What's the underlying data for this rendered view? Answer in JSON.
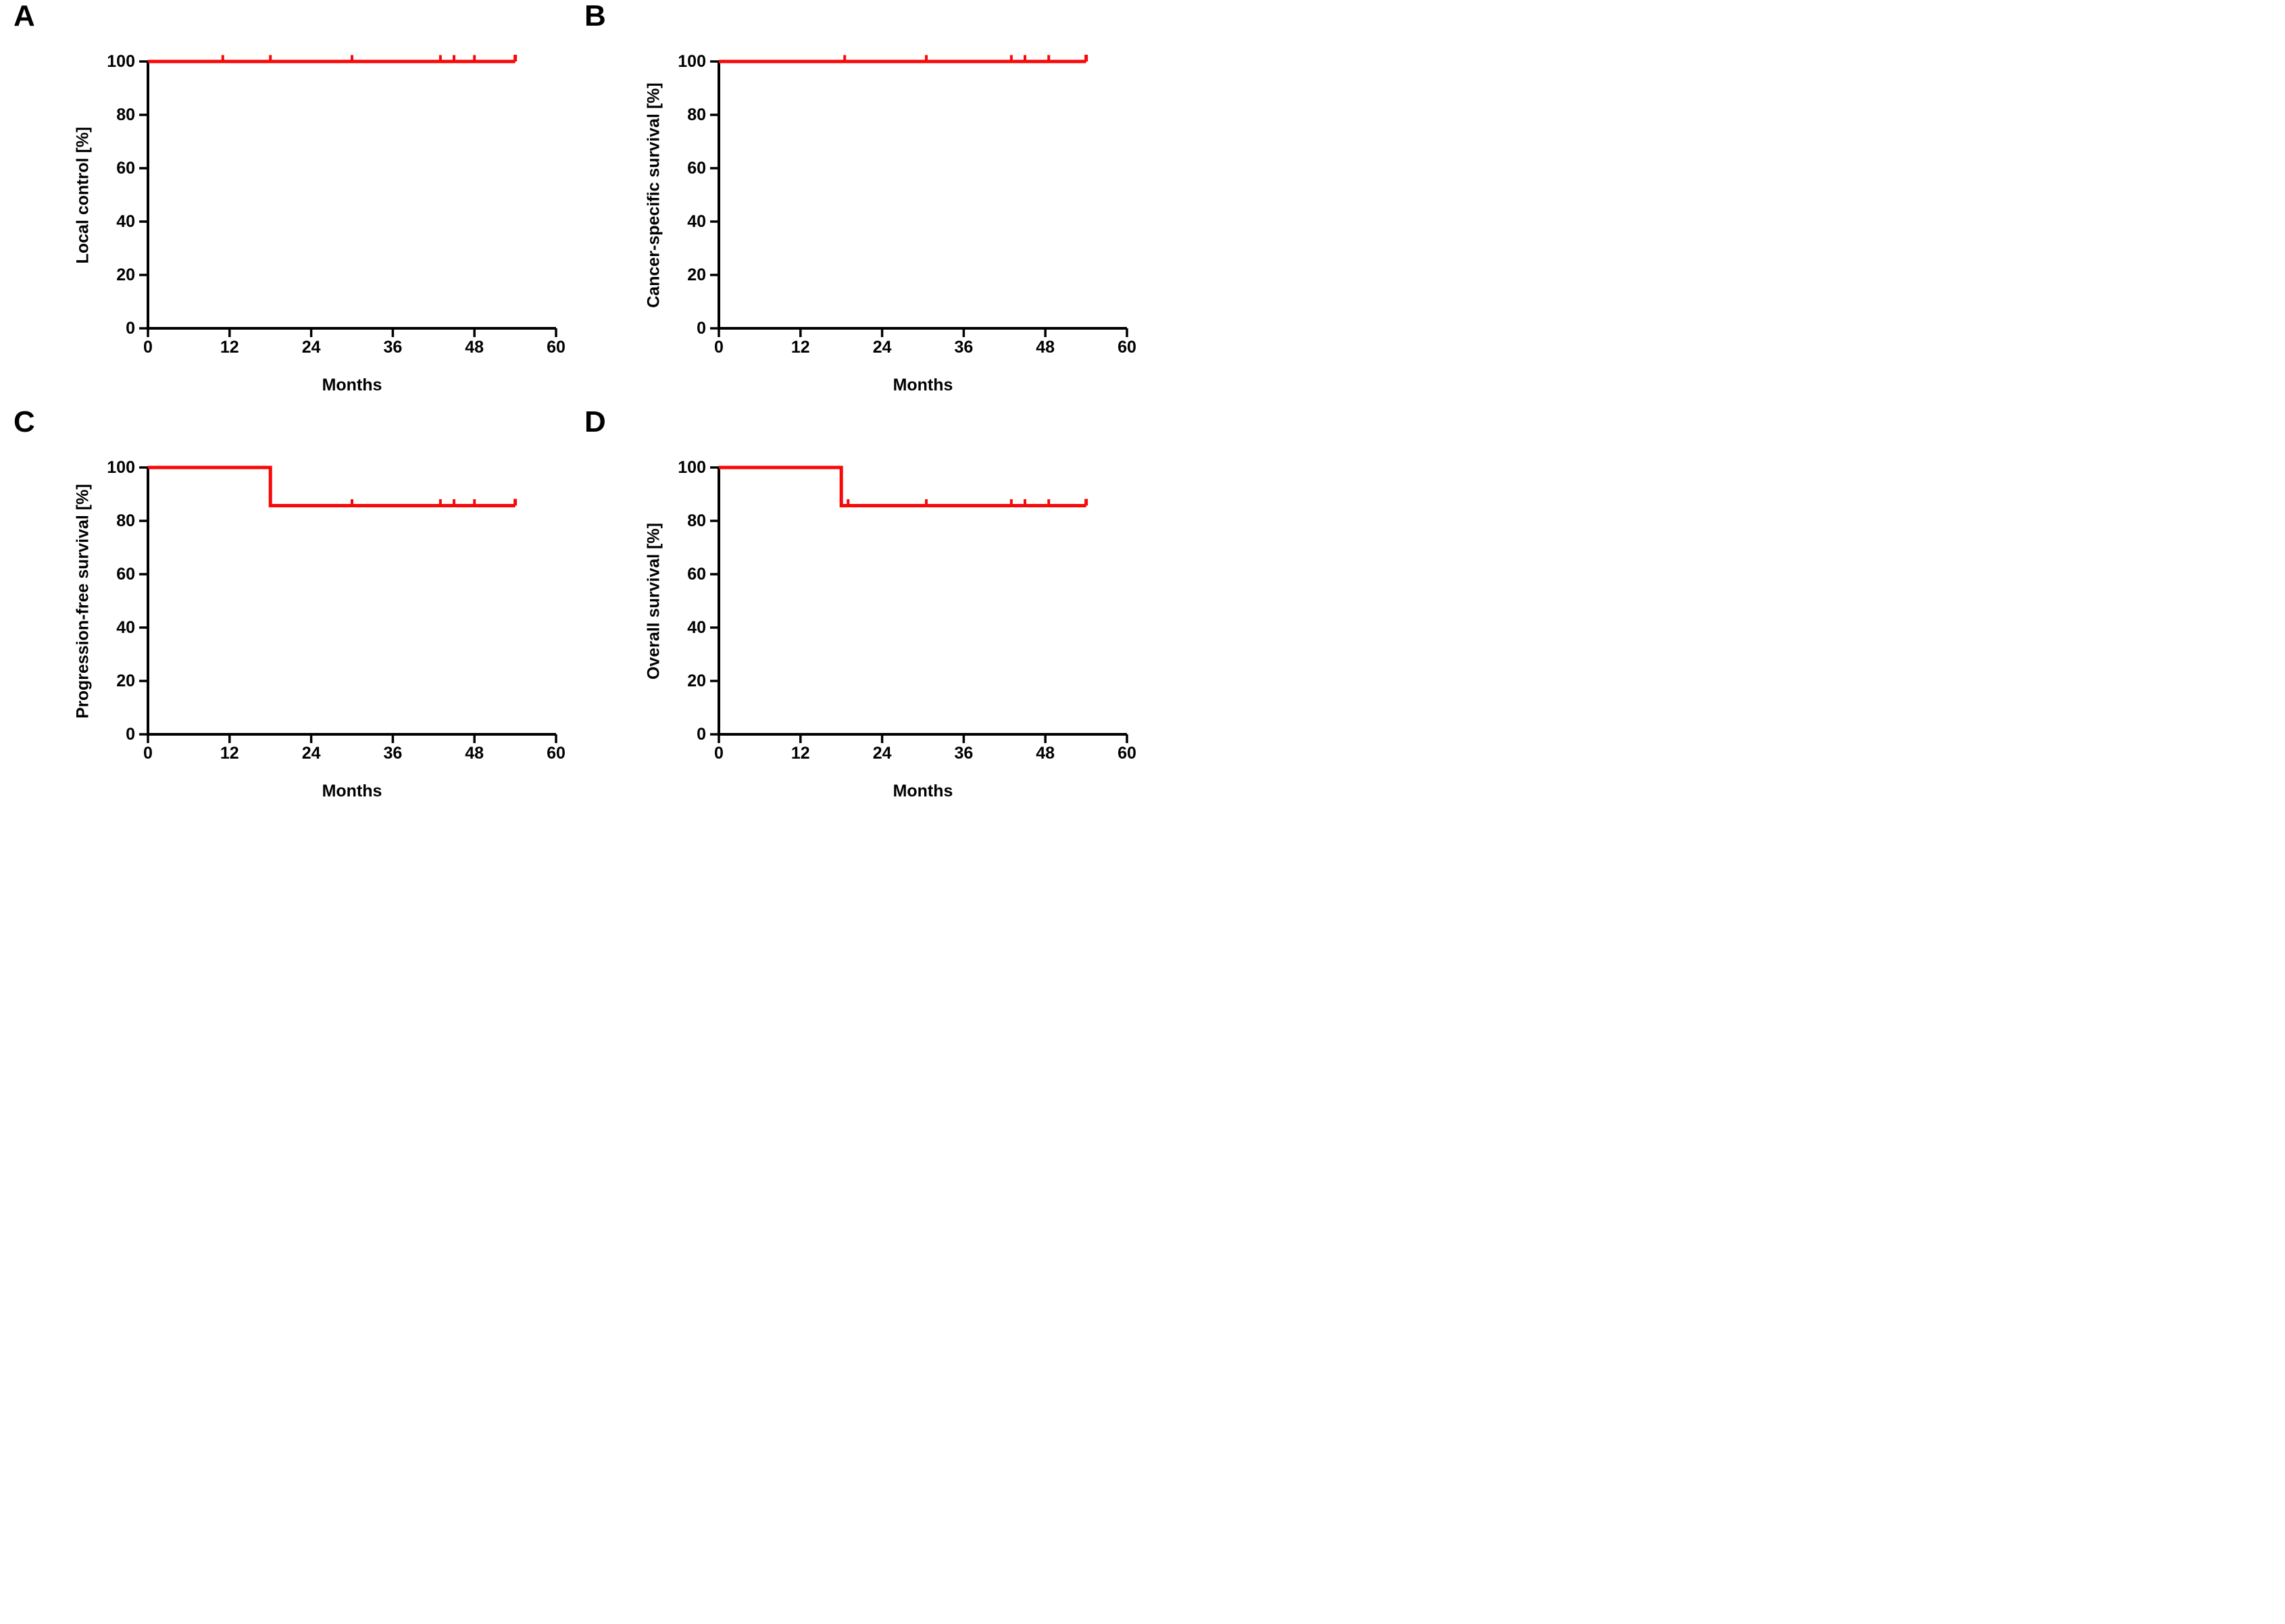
{
  "figure": {
    "background_color": "#ffffff",
    "curve_color": "#f80808",
    "axis_color": "#000000",
    "x_axis_label": "Months",
    "y_unit": "[%]"
  },
  "chart_data": [
    {
      "panel": "A",
      "type": "line",
      "subtype": "kaplan-meier-step",
      "xlabel": "Months",
      "ylabel": "Local control [%]",
      "xlim": [
        0,
        60
      ],
      "ylim": [
        0,
        100
      ],
      "xticks": [
        0,
        12,
        24,
        36,
        48,
        60
      ],
      "yticks": [
        0,
        20,
        40,
        60,
        80,
        100
      ],
      "grid": false,
      "legend": false,
      "series": [
        {
          "name": "Local control",
          "color": "#f80808",
          "step_points": [
            [
              0,
              100
            ],
            [
              54,
              100
            ]
          ],
          "censor_marks": [
            [
              11,
              100
            ],
            [
              18,
              100
            ],
            [
              30,
              100
            ],
            [
              43,
              100
            ],
            [
              45,
              100
            ],
            [
              48,
              100
            ]
          ],
          "end_tick": [
            54,
            100
          ]
        }
      ]
    },
    {
      "panel": "B",
      "type": "line",
      "subtype": "kaplan-meier-step",
      "xlabel": "Months",
      "ylabel": "Cancer-specific survival [%]",
      "xlim": [
        0,
        60
      ],
      "ylim": [
        0,
        100
      ],
      "xticks": [
        0,
        12,
        24,
        36,
        48,
        60
      ],
      "yticks": [
        0,
        20,
        40,
        60,
        80,
        100
      ],
      "grid": false,
      "legend": false,
      "series": [
        {
          "name": "Cancer-specific survival",
          "color": "#f80808",
          "step_points": [
            [
              0,
              100
            ],
            [
              54,
              100
            ]
          ],
          "censor_marks": [
            [
              18.5,
              100
            ],
            [
              30.5,
              100
            ],
            [
              43,
              100
            ],
            [
              45,
              100
            ],
            [
              48.5,
              100
            ]
          ],
          "end_tick": [
            54,
            100
          ]
        }
      ]
    },
    {
      "panel": "C",
      "type": "line",
      "subtype": "kaplan-meier-step",
      "xlabel": "Months",
      "ylabel": "Progression-free survival [%]",
      "xlim": [
        0,
        60
      ],
      "ylim": [
        0,
        100
      ],
      "xticks": [
        0,
        12,
        24,
        36,
        48,
        60
      ],
      "yticks": [
        0,
        20,
        40,
        60,
        80,
        100
      ],
      "grid": false,
      "legend": false,
      "series": [
        {
          "name": "Progression-free survival",
          "color": "#f80808",
          "step_points": [
            [
              0,
              100
            ],
            [
              18,
              100
            ],
            [
              18,
              85.7
            ],
            [
              54,
              85.7
            ]
          ],
          "censor_marks": [
            [
              30,
              85.7
            ],
            [
              43,
              85.7
            ],
            [
              45,
              85.7
            ],
            [
              48,
              85.7
            ]
          ],
          "end_tick": [
            54,
            85.7
          ],
          "event_times": [
            18
          ]
        }
      ]
    },
    {
      "panel": "D",
      "type": "line",
      "subtype": "kaplan-meier-step",
      "xlabel": "Months",
      "ylabel": "Overall survival [%]",
      "xlim": [
        0,
        60
      ],
      "ylim": [
        0,
        100
      ],
      "xticks": [
        0,
        12,
        24,
        36,
        48,
        60
      ],
      "yticks": [
        0,
        20,
        40,
        60,
        80,
        100
      ],
      "grid": false,
      "legend": false,
      "series": [
        {
          "name": "Overall survival",
          "color": "#f80808",
          "step_points": [
            [
              0,
              100
            ],
            [
              18,
              100
            ],
            [
              18,
              85.7
            ],
            [
              54,
              85.7
            ]
          ],
          "censor_marks": [
            [
              19,
              85.7
            ],
            [
              30.5,
              85.7
            ],
            [
              43,
              85.7
            ],
            [
              45,
              85.7
            ],
            [
              48.5,
              85.7
            ]
          ],
          "end_tick": [
            54,
            85.7
          ],
          "event_times": [
            18
          ]
        }
      ]
    }
  ]
}
